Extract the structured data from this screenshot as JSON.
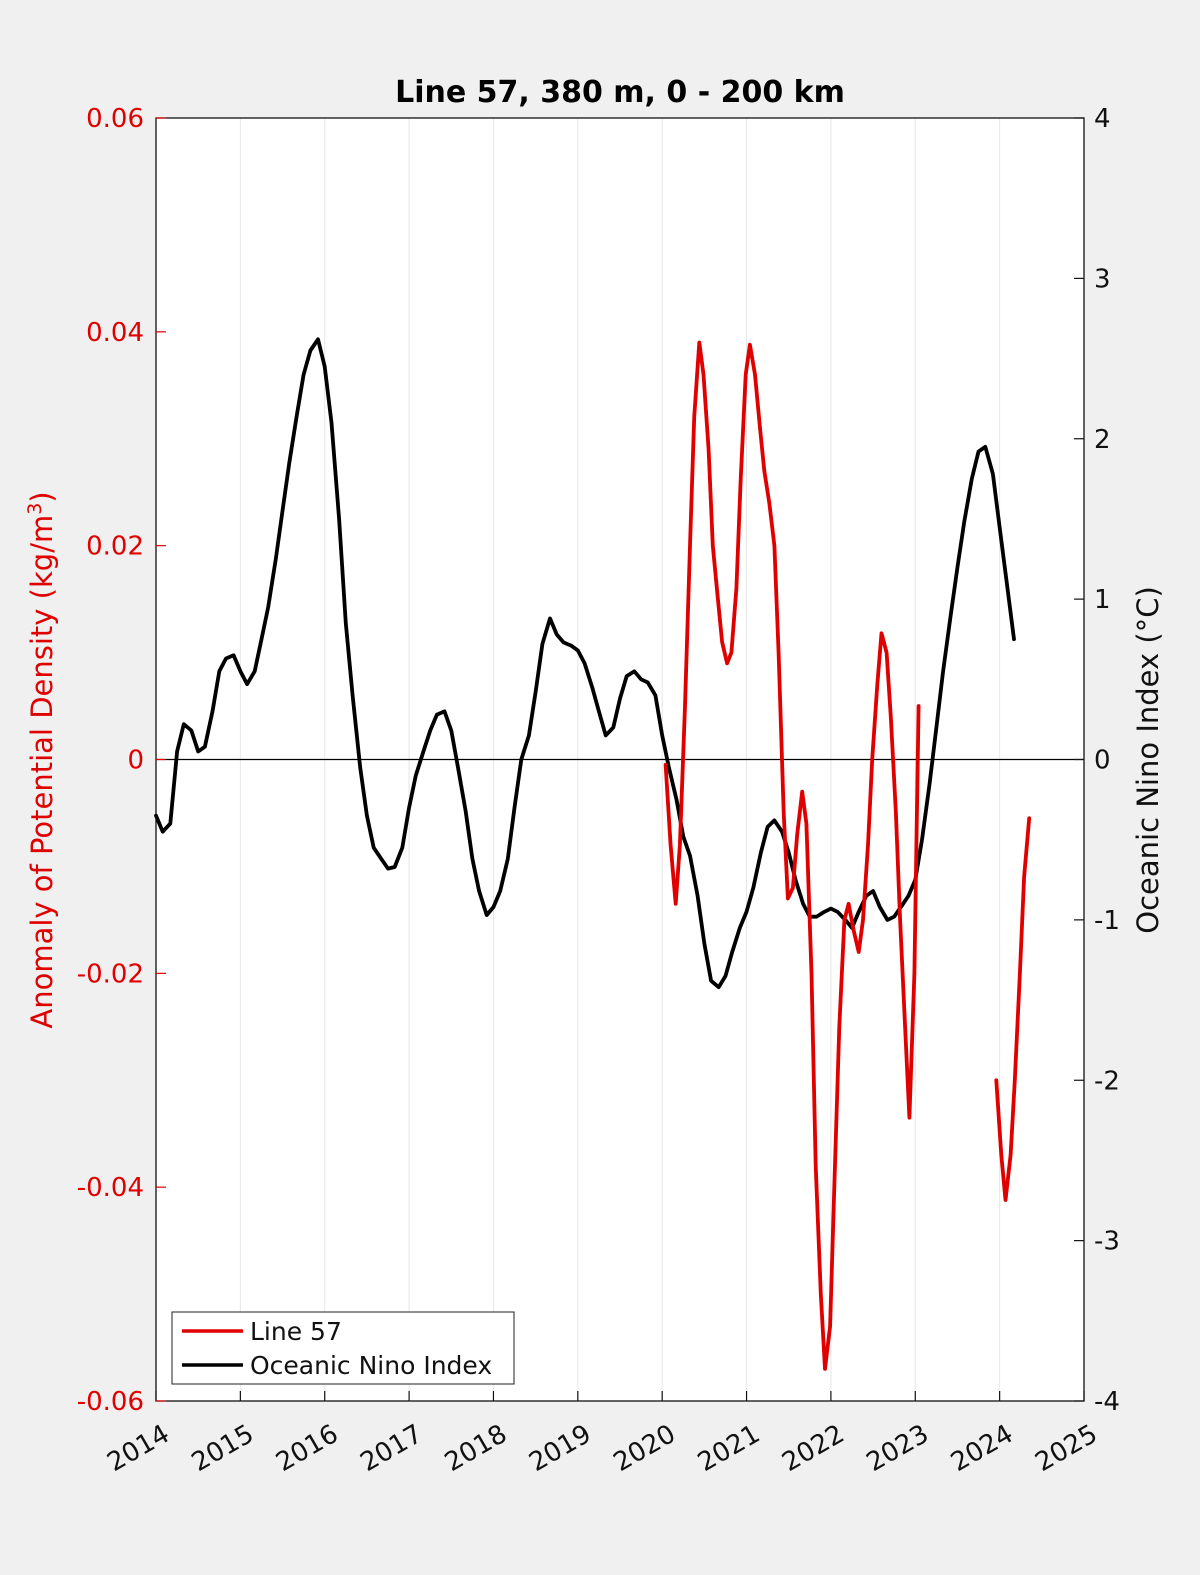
{
  "chart_data": {
    "type": "line",
    "title": "Line 57, 380 m, 0 - 200 km",
    "xlabel": "",
    "ylabel": "Anomaly of Potential Density (kg/m³)",
    "ylabel_main": "Anomaly of Potential Density (kg/m",
    "ylabel_sup": "3",
    "ylabel_end": ")",
    "y2label": "Oceanic Nino Index (°C)",
    "xlim": [
      2014,
      2025
    ],
    "ylim": [
      -0.06,
      0.06
    ],
    "y2lim": [
      -4,
      4
    ],
    "x_ticks": [
      "2014",
      "2015",
      "2016",
      "2017",
      "2018",
      "2019",
      "2020",
      "2021",
      "2022",
      "2023",
      "2024",
      "2025"
    ],
    "y_ticks": [
      "-0.06",
      "-0.04",
      "-0.02",
      "0",
      "0.02",
      "0.04",
      "0.06"
    ],
    "y2_ticks": [
      "-4",
      "-3",
      "-2",
      "-1",
      "0",
      "1",
      "2",
      "3",
      "4"
    ],
    "grid": "vertical",
    "zero_line": true,
    "legend_position": "bottom-left",
    "colors": {
      "line57": "#e00000",
      "oni": "#000000"
    },
    "series": [
      {
        "name": "Line 57",
        "axis": "left",
        "segments": [
          [
            [
              2020.04,
              -0.0005
            ],
            [
              2020.1,
              -0.008
            ],
            [
              2020.16,
              -0.0135
            ],
            [
              2020.21,
              -0.008
            ],
            [
              2020.27,
              0.005
            ],
            [
              2020.33,
              0.02
            ],
            [
              2020.38,
              0.032
            ],
            [
              2020.44,
              0.039
            ],
            [
              2020.49,
              0.036
            ],
            [
              2020.55,
              0.029
            ],
            [
              2020.6,
              0.02
            ],
            [
              2020.66,
              0.015
            ],
            [
              2020.71,
              0.011
            ],
            [
              2020.77,
              0.009
            ],
            [
              2020.82,
              0.01
            ],
            [
              2020.88,
              0.016
            ],
            [
              2020.93,
              0.026
            ],
            [
              2020.99,
              0.036
            ],
            [
              2021.04,
              0.0388
            ],
            [
              2021.1,
              0.036
            ],
            [
              2021.16,
              0.031
            ],
            [
              2021.21,
              0.027
            ],
            [
              2021.27,
              0.024
            ],
            [
              2021.33,
              0.02
            ],
            [
              2021.38,
              0.01
            ],
            [
              2021.44,
              -0.005
            ],
            [
              2021.49,
              -0.013
            ],
            [
              2021.55,
              -0.012
            ],
            [
              2021.6,
              -0.007
            ],
            [
              2021.66,
              -0.003
            ],
            [
              2021.71,
              -0.006
            ],
            [
              2021.77,
              -0.02
            ],
            [
              2021.82,
              -0.038
            ],
            [
              2021.88,
              -0.05
            ],
            [
              2021.93,
              -0.057
            ],
            [
              2021.99,
              -0.053
            ],
            [
              2022.04,
              -0.04
            ],
            [
              2022.1,
              -0.025
            ],
            [
              2022.16,
              -0.015
            ],
            [
              2022.21,
              -0.0135
            ],
            [
              2022.27,
              -0.016
            ],
            [
              2022.33,
              -0.018
            ],
            [
              2022.38,
              -0.015
            ],
            [
              2022.44,
              -0.008
            ],
            [
              2022.49,
              0.0
            ],
            [
              2022.55,
              0.007
            ],
            [
              2022.6,
              0.0118
            ],
            [
              2022.66,
              0.01
            ],
            [
              2022.71,
              0.004
            ],
            [
              2022.77,
              -0.005
            ],
            [
              2022.82,
              -0.015
            ],
            [
              2022.88,
              -0.025
            ],
            [
              2022.93,
              -0.0335
            ],
            [
              2022.99,
              -0.02
            ],
            [
              2023.04,
              0.005
            ]
          ],
          [
            [
              2023.96,
              -0.03
            ],
            [
              2024.02,
              -0.037
            ],
            [
              2024.07,
              -0.0412
            ],
            [
              2024.13,
              -0.037
            ],
            [
              2024.18,
              -0.03
            ],
            [
              2024.24,
              -0.02
            ],
            [
              2024.29,
              -0.011
            ],
            [
              2024.35,
              -0.0055
            ]
          ]
        ]
      },
      {
        "name": "Oceanic Nino Index",
        "axis": "right",
        "segments": [
          [
            [
              2014.0,
              -0.35
            ],
            [
              2014.08,
              -0.45
            ],
            [
              2014.17,
              -0.4
            ],
            [
              2014.25,
              0.05
            ],
            [
              2014.33,
              0.22
            ],
            [
              2014.42,
              0.18
            ],
            [
              2014.5,
              0.05
            ],
            [
              2014.58,
              0.08
            ],
            [
              2014.67,
              0.3
            ],
            [
              2014.75,
              0.55
            ],
            [
              2014.83,
              0.63
            ],
            [
              2014.92,
              0.65
            ],
            [
              2015.0,
              0.55
            ],
            [
              2015.08,
              0.47
            ],
            [
              2015.17,
              0.55
            ],
            [
              2015.25,
              0.75
            ],
            [
              2015.33,
              0.95
            ],
            [
              2015.42,
              1.25
            ],
            [
              2015.5,
              1.55
            ],
            [
              2015.58,
              1.85
            ],
            [
              2015.67,
              2.15
            ],
            [
              2015.75,
              2.4
            ],
            [
              2015.83,
              2.55
            ],
            [
              2015.92,
              2.62
            ],
            [
              2016.0,
              2.45
            ],
            [
              2016.08,
              2.1
            ],
            [
              2016.17,
              1.5
            ],
            [
              2016.25,
              0.85
            ],
            [
              2016.33,
              0.4
            ],
            [
              2016.42,
              -0.05
            ],
            [
              2016.5,
              -0.35
            ],
            [
              2016.58,
              -0.55
            ],
            [
              2016.67,
              -0.62
            ],
            [
              2016.75,
              -0.68
            ],
            [
              2016.83,
              -0.67
            ],
            [
              2016.92,
              -0.55
            ],
            [
              2017.0,
              -0.3
            ],
            [
              2017.08,
              -0.1
            ],
            [
              2017.17,
              0.05
            ],
            [
              2017.25,
              0.18
            ],
            [
              2017.33,
              0.28
            ],
            [
              2017.42,
              0.3
            ],
            [
              2017.5,
              0.18
            ],
            [
              2017.58,
              -0.05
            ],
            [
              2017.67,
              -0.32
            ],
            [
              2017.75,
              -0.62
            ],
            [
              2017.83,
              -0.82
            ],
            [
              2017.92,
              -0.97
            ],
            [
              2018.0,
              -0.92
            ],
            [
              2018.08,
              -0.82
            ],
            [
              2018.17,
              -0.62
            ],
            [
              2018.25,
              -0.3
            ],
            [
              2018.33,
              0.0
            ],
            [
              2018.42,
              0.15
            ],
            [
              2018.5,
              0.42
            ],
            [
              2018.58,
              0.72
            ],
            [
              2018.67,
              0.88
            ],
            [
              2018.75,
              0.78
            ],
            [
              2018.83,
              0.73
            ],
            [
              2018.92,
              0.71
            ],
            [
              2019.0,
              0.68
            ],
            [
              2019.08,
              0.6
            ],
            [
              2019.17,
              0.45
            ],
            [
              2019.25,
              0.3
            ],
            [
              2019.33,
              0.15
            ],
            [
              2019.42,
              0.2
            ],
            [
              2019.5,
              0.38
            ],
            [
              2019.58,
              0.52
            ],
            [
              2019.67,
              0.55
            ],
            [
              2019.75,
              0.5
            ],
            [
              2019.83,
              0.48
            ],
            [
              2019.92,
              0.4
            ],
            [
              2020.0,
              0.15
            ],
            [
              2020.08,
              -0.05
            ],
            [
              2020.17,
              -0.25
            ],
            [
              2020.25,
              -0.48
            ],
            [
              2020.33,
              -0.6
            ],
            [
              2020.42,
              -0.85
            ],
            [
              2020.5,
              -1.15
            ],
            [
              2020.58,
              -1.38
            ],
            [
              2020.67,
              -1.42
            ],
            [
              2020.75,
              -1.35
            ],
            [
              2020.83,
              -1.2
            ],
            [
              2020.92,
              -1.05
            ],
            [
              2021.0,
              -0.95
            ],
            [
              2021.08,
              -0.8
            ],
            [
              2021.17,
              -0.58
            ],
            [
              2021.25,
              -0.42
            ],
            [
              2021.33,
              -0.38
            ],
            [
              2021.42,
              -0.45
            ],
            [
              2021.5,
              -0.58
            ],
            [
              2021.58,
              -0.75
            ],
            [
              2021.67,
              -0.9
            ],
            [
              2021.75,
              -0.98
            ],
            [
              2021.83,
              -0.98
            ],
            [
              2021.92,
              -0.95
            ],
            [
              2022.0,
              -0.93
            ],
            [
              2022.08,
              -0.95
            ],
            [
              2022.17,
              -1.0
            ],
            [
              2022.25,
              -1.05
            ],
            [
              2022.33,
              -0.95
            ],
            [
              2022.42,
              -0.85
            ],
            [
              2022.5,
              -0.82
            ],
            [
              2022.58,
              -0.92
            ],
            [
              2022.67,
              -1.0
            ],
            [
              2022.75,
              -0.98
            ],
            [
              2022.83,
              -0.92
            ],
            [
              2022.92,
              -0.85
            ],
            [
              2023.0,
              -0.75
            ],
            [
              2023.08,
              -0.5
            ],
            [
              2023.17,
              -0.15
            ],
            [
              2023.25,
              0.2
            ],
            [
              2023.33,
              0.55
            ],
            [
              2023.42,
              0.9
            ],
            [
              2023.5,
              1.2
            ],
            [
              2023.58,
              1.48
            ],
            [
              2023.67,
              1.75
            ],
            [
              2023.75,
              1.92
            ],
            [
              2023.83,
              1.95
            ],
            [
              2023.92,
              1.78
            ],
            [
              2024.0,
              1.45
            ],
            [
              2024.08,
              1.12
            ],
            [
              2024.17,
              0.75
            ]
          ]
        ]
      }
    ]
  }
}
